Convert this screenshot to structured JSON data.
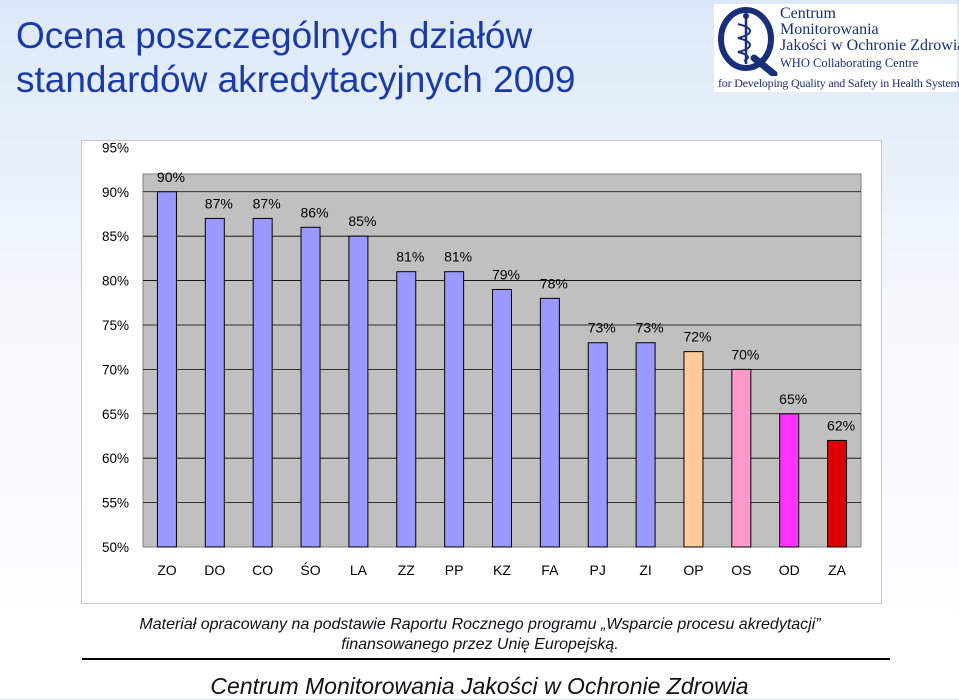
{
  "slide": {
    "title_line1": "Ocena poszczególnych działów",
    "title_line2": "standardów akredytacyjnych 2009"
  },
  "logo": {
    "line1": "Centrum",
    "line2": "Monitorowania",
    "line3": "Jakości w Ochronie Zdrowia",
    "line4": "WHO Collaborating Centre",
    "line5": "for Developing Quality and Safety in Health Systems",
    "colors": {
      "text": "#1a2f7a"
    }
  },
  "chart_data": {
    "type": "bar",
    "categories": [
      "ZO",
      "DO",
      "CO",
      "ŚO",
      "LA",
      "ZZ",
      "PP",
      "KZ",
      "FA",
      "PJ",
      "ZI",
      "OP",
      "OS",
      "OD",
      "ZA"
    ],
    "values": [
      90,
      87,
      87,
      86,
      85,
      81,
      81,
      79,
      78,
      73,
      73,
      72,
      70,
      65,
      62
    ],
    "data_labels": [
      "90%",
      "87%",
      "87%",
      "86%",
      "85%",
      "81%",
      "81%",
      "79%",
      "78%",
      "73%",
      "73%",
      "72%",
      "70%",
      "65%",
      "62%"
    ],
    "colors": [
      "#9999ff",
      "#9999ff",
      "#9999ff",
      "#9999ff",
      "#9999ff",
      "#9999ff",
      "#9999ff",
      "#9999ff",
      "#9999ff",
      "#9999ff",
      "#9999ff",
      "#ffcc99",
      "#ff99cc",
      "#ff33ff",
      "#dd0000"
    ],
    "y_ticks": [
      "50%",
      "55%",
      "60%",
      "65%",
      "70%",
      "75%",
      "80%",
      "85%",
      "90%",
      "95%"
    ],
    "ylim": [
      50,
      95
    ],
    "grid": true,
    "plot_background": "#c0c0c0",
    "title": "",
    "xlabel": "",
    "ylabel": ""
  },
  "footnote": {
    "line1": "Materiał opracowany na podstawie Raportu Rocznego programu „Wsparcie procesu akredytacji”",
    "line2": "finansowanego przez Unię Europejską."
  },
  "footer": {
    "text": "Centrum Monitorowania Jakości w Ochronie Zdrowia"
  }
}
